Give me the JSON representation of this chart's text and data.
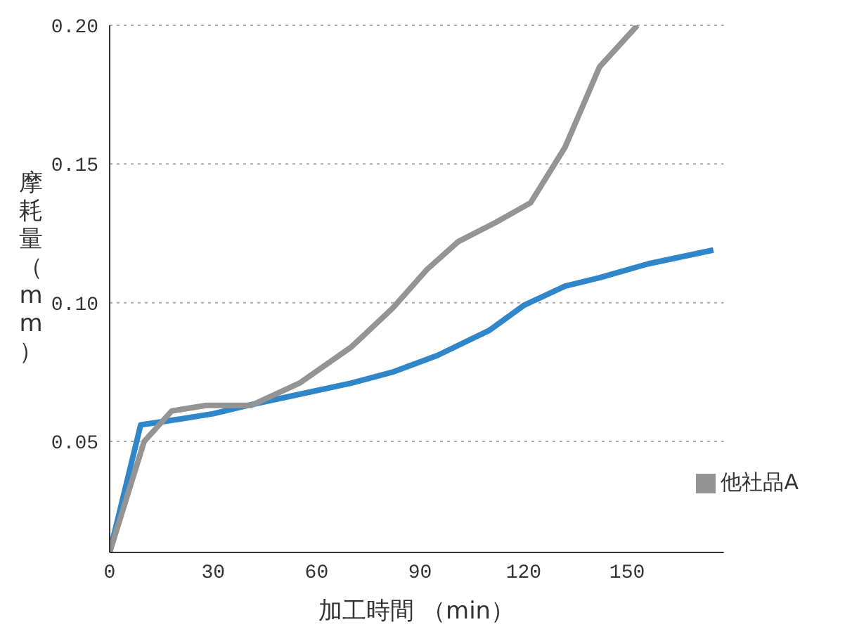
{
  "chart_data": {
    "type": "line",
    "xlabel": "加工時間 （min）",
    "ylabel": "摩耗量（mm）",
    "xlim": [
      0,
      178
    ],
    "xticks": [
      0,
      30,
      60,
      90,
      120,
      150
    ],
    "ylim": [
      0.01,
      0.2
    ],
    "yticks": [
      {
        "value": 0.05,
        "label": "0.05"
      },
      {
        "value": 0.1,
        "label": "0.10"
      },
      {
        "value": 0.15,
        "label": "0.15"
      },
      {
        "value": 0.2,
        "label": "0.20"
      }
    ],
    "grid": "y",
    "legend": "bottom right",
    "marker": "none",
    "line_style": "solid",
    "series": [
      {
        "color": "#2f86c8",
        "x": [
          0,
          9,
          20,
          30,
          40,
          55,
          70,
          82,
          95,
          110,
          120,
          132,
          142,
          156,
          175
        ],
        "values": [
          0.01,
          0.056,
          0.058,
          0.06,
          0.063,
          0.067,
          0.071,
          0.075,
          0.081,
          0.09,
          0.099,
          0.106,
          0.109,
          0.114,
          0.119
        ]
      },
      {
        "name": "他社品A",
        "color": "#949494",
        "x": [
          0,
          10,
          18,
          28,
          41,
          55,
          70,
          82,
          92,
          101,
          112,
          122,
          132,
          142,
          153
        ],
        "values": [
          0.01,
          0.05,
          0.061,
          0.063,
          0.063,
          0.071,
          0.084,
          0.098,
          0.112,
          0.122,
          0.129,
          0.136,
          0.156,
          0.185,
          0.2
        ]
      }
    ]
  }
}
